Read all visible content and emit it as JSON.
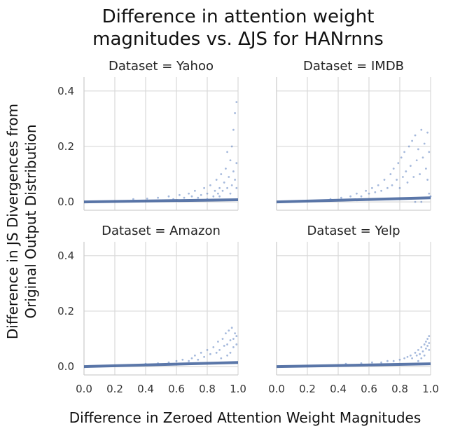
{
  "chart_data": {
    "type": "scatter",
    "title_lines": [
      "Difference in attention weight",
      "magnitudes vs. ΔJS for HANrnns"
    ],
    "xlabel": "Difference in Zeroed Attention Weight Magnitudes",
    "ylabel_lines": [
      "Difference in JS Divergences from",
      "Original Output Distribution"
    ],
    "xlim": [
      0.0,
      1.0
    ],
    "ylim": [
      -0.03,
      0.45
    ],
    "xticks": [
      "0.0",
      "0.2",
      "0.4",
      "0.6",
      "0.8",
      "1.0"
    ],
    "yticks": [
      "0.0",
      "0.2",
      "0.4"
    ],
    "grid": true,
    "color": "#4c72b0",
    "panels": [
      {
        "title": "Dataset = Yahoo",
        "band": {
          "x": [
            0.0,
            1.0
          ],
          "y_start": 0.0,
          "y_end": 0.008
        },
        "points": [
          [
            0.32,
            0.01
          ],
          [
            0.41,
            0.012
          ],
          [
            0.48,
            0.015
          ],
          [
            0.55,
            0.02
          ],
          [
            0.58,
            0.01
          ],
          [
            0.62,
            0.025
          ],
          [
            0.65,
            0.015
          ],
          [
            0.68,
            0.03
          ],
          [
            0.7,
            0.02
          ],
          [
            0.72,
            0.04
          ],
          [
            0.74,
            0.015
          ],
          [
            0.76,
            0.025
          ],
          [
            0.78,
            0.05
          ],
          [
            0.8,
            0.03
          ],
          [
            0.82,
            0.06
          ],
          [
            0.84,
            0.02
          ],
          [
            0.85,
            0.04
          ],
          [
            0.86,
            0.08
          ],
          [
            0.87,
            0.03
          ],
          [
            0.88,
            0.05
          ],
          [
            0.89,
            0.1
          ],
          [
            0.9,
            0.04
          ],
          [
            0.91,
            0.07
          ],
          [
            0.92,
            0.12
          ],
          [
            0.93,
            0.05
          ],
          [
            0.94,
            0.09
          ],
          [
            0.95,
            0.15
          ],
          [
            0.96,
            0.06
          ],
          [
            0.96,
            0.2
          ],
          [
            0.97,
            0.11
          ],
          [
            0.97,
            0.26
          ],
          [
            0.98,
            0.08
          ],
          [
            0.98,
            0.32
          ],
          [
            0.99,
            0.14
          ],
          [
            0.99,
            0.36
          ],
          [
            0.99,
            0.05
          ],
          [
            0.93,
            0.18
          ],
          [
            0.88,
            0.02
          ],
          [
            0.8,
            0.01
          ],
          [
            0.95,
            0.03
          ]
        ]
      },
      {
        "title": "Dataset = IMDB",
        "band": {
          "x": [
            0.0,
            1.0
          ],
          "y_start": 0.0,
          "y_end": 0.015
        },
        "points": [
          [
            0.35,
            0.01
          ],
          [
            0.42,
            0.015
          ],
          [
            0.48,
            0.02
          ],
          [
            0.52,
            0.03
          ],
          [
            0.55,
            0.02
          ],
          [
            0.58,
            0.04
          ],
          [
            0.6,
            0.03
          ],
          [
            0.62,
            0.05
          ],
          [
            0.64,
            0.035
          ],
          [
            0.66,
            0.06
          ],
          [
            0.68,
            0.04
          ],
          [
            0.7,
            0.08
          ],
          [
            0.72,
            0.05
          ],
          [
            0.74,
            0.1
          ],
          [
            0.75,
            0.06
          ],
          [
            0.76,
            0.12
          ],
          [
            0.78,
            0.08
          ],
          [
            0.79,
            0.14
          ],
          [
            0.8,
            0.05
          ],
          [
            0.81,
            0.16
          ],
          [
            0.82,
            0.09
          ],
          [
            0.83,
            0.18
          ],
          [
            0.84,
            0.11
          ],
          [
            0.85,
            0.07
          ],
          [
            0.86,
            0.2
          ],
          [
            0.87,
            0.13
          ],
          [
            0.88,
            0.22
          ],
          [
            0.89,
            0.09
          ],
          [
            0.9,
            0.24
          ],
          [
            0.91,
            0.15
          ],
          [
            0.92,
            0.19
          ],
          [
            0.93,
            0.1
          ],
          [
            0.94,
            0.26
          ],
          [
            0.95,
            0.16
          ],
          [
            0.96,
            0.21
          ],
          [
            0.97,
            0.12
          ],
          [
            0.98,
            0.25
          ],
          [
            0.98,
            0.08
          ],
          [
            0.99,
            0.18
          ],
          [
            0.99,
            0.03
          ],
          [
            1.0,
            0.02
          ],
          [
            0.9,
            0.0
          ],
          [
            0.94,
            0.0
          ]
        ]
      },
      {
        "title": "Dataset = Amazon",
        "band": {
          "x": [
            0.0,
            1.0
          ],
          "y_start": 0.0,
          "y_end": 0.015
        },
        "points": [
          [
            0.4,
            0.01
          ],
          [
            0.48,
            0.012
          ],
          [
            0.55,
            0.015
          ],
          [
            0.6,
            0.02
          ],
          [
            0.64,
            0.025
          ],
          [
            0.68,
            0.02
          ],
          [
            0.7,
            0.03
          ],
          [
            0.72,
            0.04
          ],
          [
            0.74,
            0.025
          ],
          [
            0.76,
            0.05
          ],
          [
            0.78,
            0.035
          ],
          [
            0.8,
            0.06
          ],
          [
            0.82,
            0.045
          ],
          [
            0.84,
            0.07
          ],
          [
            0.86,
            0.05
          ],
          [
            0.87,
            0.09
          ],
          [
            0.88,
            0.06
          ],
          [
            0.9,
            0.1
          ],
          [
            0.91,
            0.075
          ],
          [
            0.92,
            0.12
          ],
          [
            0.93,
            0.08
          ],
          [
            0.94,
            0.13
          ],
          [
            0.95,
            0.095
          ],
          [
            0.96,
            0.14
          ],
          [
            0.97,
            0.1
          ],
          [
            0.98,
            0.12
          ],
          [
            0.99,
            0.08
          ],
          [
            0.99,
            0.11
          ],
          [
            0.97,
            0.07
          ],
          [
            0.95,
            0.05
          ],
          [
            0.89,
            0.03
          ],
          [
            0.93,
            0.04
          ]
        ]
      },
      {
        "title": "Dataset = Yelp",
        "band": {
          "x": [
            0.0,
            1.0
          ],
          "y_start": 0.0,
          "y_end": 0.01
        },
        "points": [
          [
            0.45,
            0.01
          ],
          [
            0.55,
            0.012
          ],
          [
            0.62,
            0.015
          ],
          [
            0.68,
            0.015
          ],
          [
            0.72,
            0.02
          ],
          [
            0.76,
            0.02
          ],
          [
            0.8,
            0.025
          ],
          [
            0.83,
            0.03
          ],
          [
            0.85,
            0.035
          ],
          [
            0.87,
            0.04
          ],
          [
            0.88,
            0.03
          ],
          [
            0.9,
            0.05
          ],
          [
            0.91,
            0.04
          ],
          [
            0.92,
            0.06
          ],
          [
            0.93,
            0.045
          ],
          [
            0.94,
            0.07
          ],
          [
            0.95,
            0.055
          ],
          [
            0.96,
            0.08
          ],
          [
            0.97,
            0.065
          ],
          [
            0.97,
            0.09
          ],
          [
            0.98,
            0.075
          ],
          [
            0.98,
            0.1
          ],
          [
            0.99,
            0.085
          ],
          [
            0.99,
            0.11
          ],
          [
            0.96,
            0.04
          ],
          [
            0.94,
            0.03
          ],
          [
            0.92,
            0.02
          ],
          [
            0.99,
            0.06
          ]
        ]
      }
    ]
  }
}
